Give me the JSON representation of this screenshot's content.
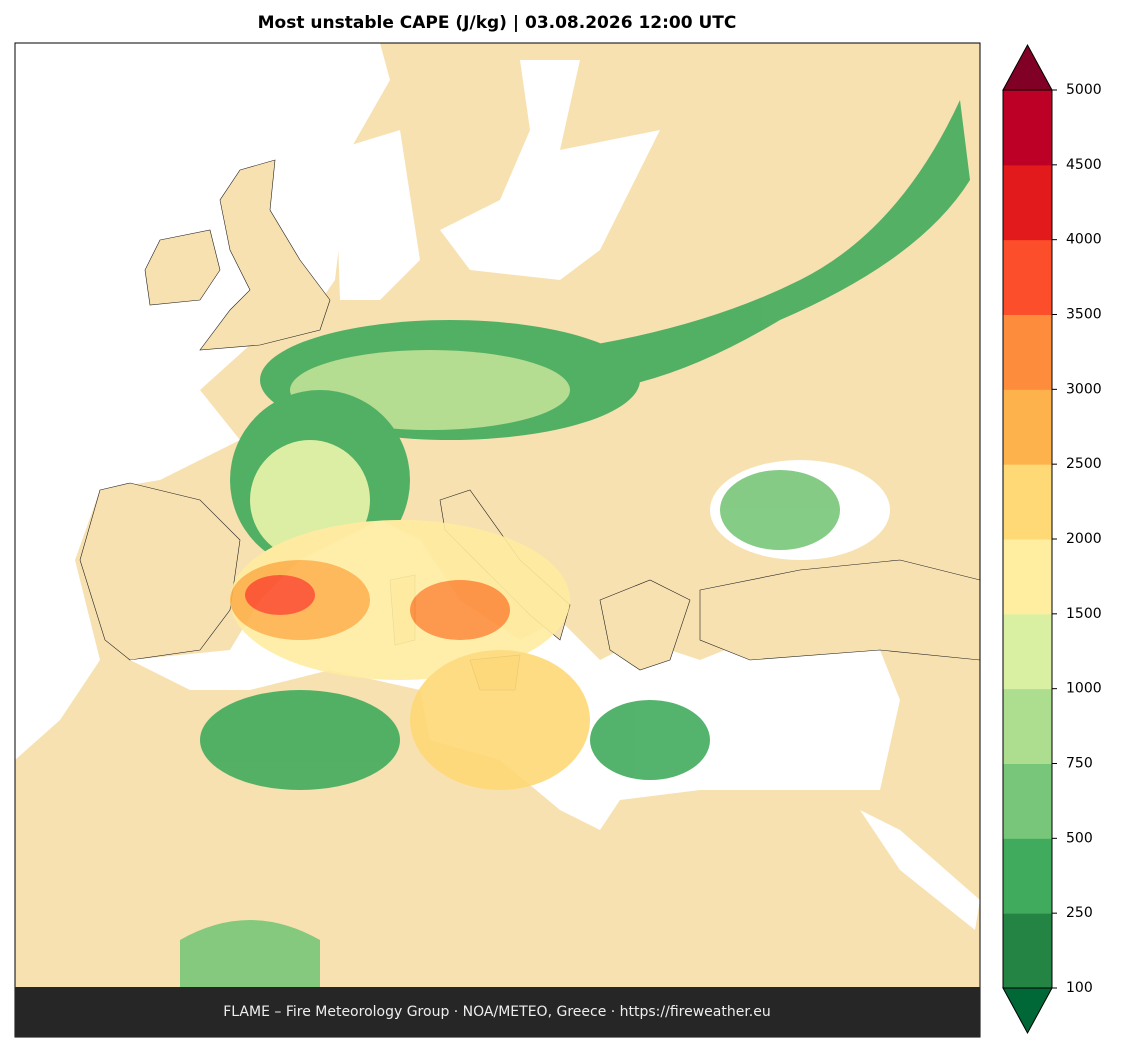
{
  "chart_data": {
    "type": "colormap",
    "title": "Most unstable CAPE (J/kg)  |  03.08.2026 12:00 UTC",
    "footer": "FLAME – Fire Meteorology Group · NOA/METEO, Greece · https://fireweather.eu",
    "colorbar": {
      "ticks": [
        100,
        250,
        500,
        750,
        1000,
        1500,
        2000,
        2500,
        3000,
        3500,
        4000,
        4500,
        5000
      ],
      "colors": [
        "#238443",
        "#41ab5d",
        "#78c679",
        "#addd8e",
        "#d9f0a3",
        "#ffeda0",
        "#fed976",
        "#feb24c",
        "#fd8d3c",
        "#fc4e2a",
        "#e31a1c",
        "#bd0026"
      ],
      "under_color": "#006837",
      "over_color": "#800026"
    }
  }
}
